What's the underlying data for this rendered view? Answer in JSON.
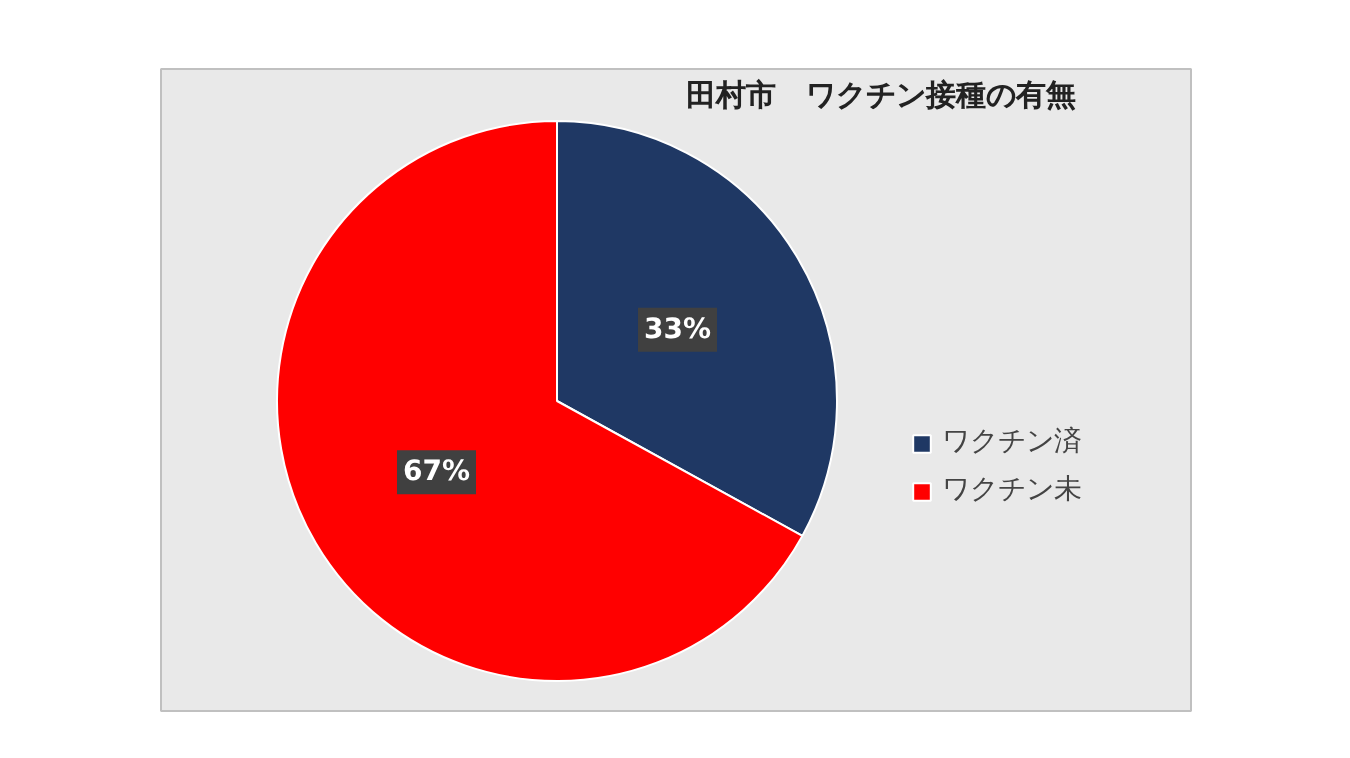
{
  "chart_data": {
    "type": "pie",
    "title": "田村市　ワクチン接種の有無",
    "categories": [
      "ワクチン済",
      "ワクチン未"
    ],
    "values": [
      33,
      67
    ],
    "colors": [
      "#1f3864",
      "#ff0000"
    ],
    "value_labels": [
      "33%",
      "67%"
    ],
    "legend": "right"
  }
}
